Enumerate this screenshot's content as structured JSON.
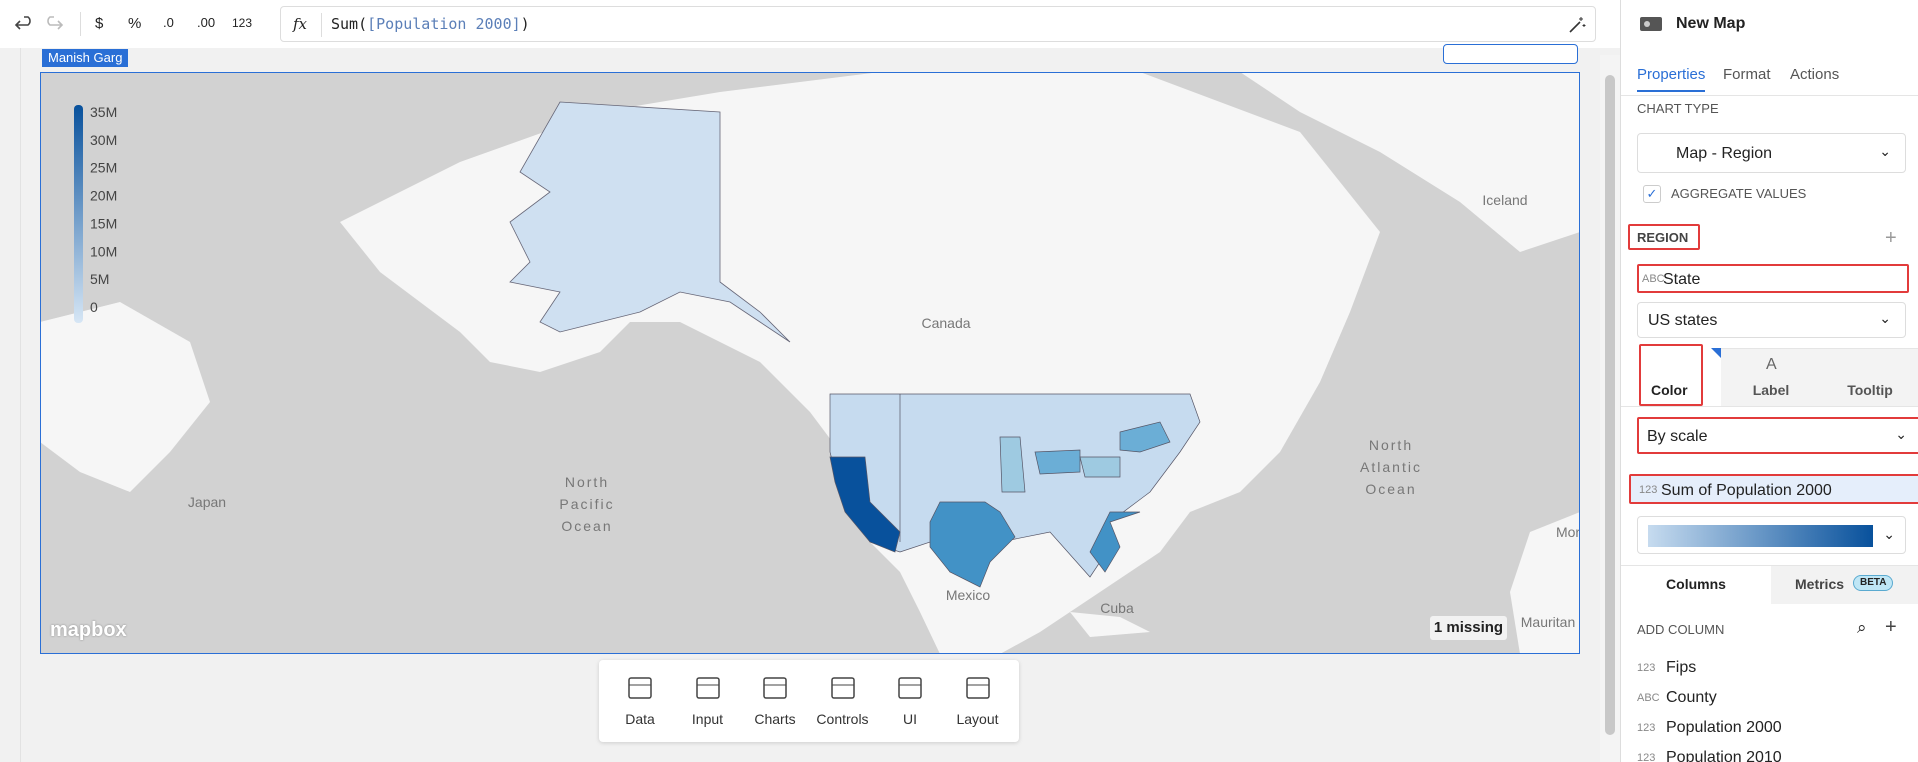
{
  "toolbar": {
    "buttons": [
      "$",
      "%",
      ".0",
      ".00",
      "123"
    ],
    "fx": "fx"
  },
  "formula": {
    "func": "Sum(",
    "field": "[Population 2000]",
    "close": ")"
  },
  "canvas": {
    "owner_tag": "Manish Garg",
    "map": {
      "legend": [
        "35M",
        "30M",
        "25M",
        "20M",
        "15M",
        "10M",
        "5M",
        "0"
      ],
      "labels": {
        "canada": "Canada",
        "pacific": [
          "North",
          "Pacific",
          "Ocean"
        ],
        "atlantic": [
          "North",
          "Atlantic",
          "Ocean"
        ],
        "japan": "Japan",
        "mexico": "Mexico",
        "cuba": "Cuba",
        "iceland": "Iceland",
        "morocco": "Mor",
        "mauritania": "Mauritan"
      },
      "missing": "1 missing",
      "attribution": "mapbox"
    },
    "dock": [
      "Data",
      "Input",
      "Charts",
      "Controls",
      "UI",
      "Layout"
    ]
  },
  "panel": {
    "title": "New Map",
    "tabs": [
      "Properties",
      "Format",
      "Actions"
    ],
    "chart_type_label": "CHART TYPE",
    "chart_type": "Map - Region",
    "aggregate": "AGGREGATE VALUES",
    "region_label": "REGION",
    "region_field": {
      "type": "ABC",
      "name": "State"
    },
    "region_set": "US states",
    "encoding_tabs": [
      "Color",
      "Label",
      "Tooltip"
    ],
    "color_mode": "By scale",
    "color_field": {
      "type": "123",
      "name": "Sum of Population 2000"
    },
    "bottom_tabs": {
      "columns": "Columns",
      "metrics": "Metrics",
      "beta": "BETA"
    },
    "add_column": "ADD COLUMN",
    "columns": [
      {
        "type": "123",
        "name": "Fips"
      },
      {
        "type": "ABC",
        "name": "County"
      },
      {
        "type": "123",
        "name": "Population 2000"
      },
      {
        "type": "123",
        "name": "Population 2010"
      }
    ]
  }
}
